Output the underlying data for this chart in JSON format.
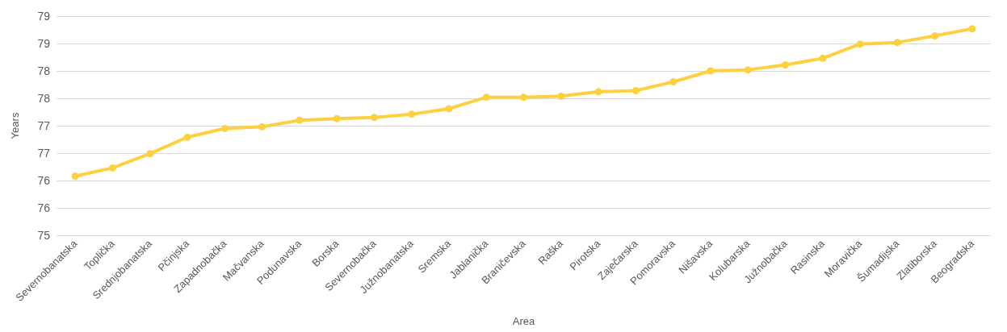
{
  "chart_data": {
    "type": "line",
    "xlabel": "Area",
    "ylabel": "Years",
    "categories": [
      "Severnobanatska",
      "Toplička",
      "Srednjobanatska",
      "Pčinjska",
      "Zapadnobačka",
      "Mačvanska",
      "Podunavska",
      "Borska",
      "Severnobačka",
      "Južnobanatska",
      "Sremska",
      "Jablanička",
      "Braničevska",
      "Raška",
      "Pirotska",
      "Zaječarska",
      "Pomoravska",
      "Nišavska",
      "Kolubarska",
      "Južnobačka",
      "Rasinska",
      "Moravička",
      "Šumadijska",
      "Zlatiborska",
      "Beogradska"
    ],
    "series": [
      {
        "color": "#fdd03f",
        "values": [
          76.08,
          76.23,
          76.49,
          76.79,
          76.95,
          76.98,
          77.1,
          77.13,
          77.15,
          77.21,
          77.31,
          77.52,
          77.52,
          77.54,
          77.62,
          77.64,
          77.8,
          78.0,
          78.02,
          78.11,
          78.23,
          78.49,
          78.52,
          78.64,
          78.77
        ]
      }
    ],
    "ylim": [
      75,
      79
    ],
    "yticks": [
      75,
      {
        "value": 75.5,
        "label": "76"
      },
      76,
      {
        "value": 76.5,
        "label": "77"
      },
      77,
      {
        "value": 77.5,
        "label": "78"
      },
      78,
      {
        "value": 78.5,
        "label": "79"
      },
      79
    ],
    "grid": "y",
    "marker": "circle",
    "line_style": "solid"
  }
}
